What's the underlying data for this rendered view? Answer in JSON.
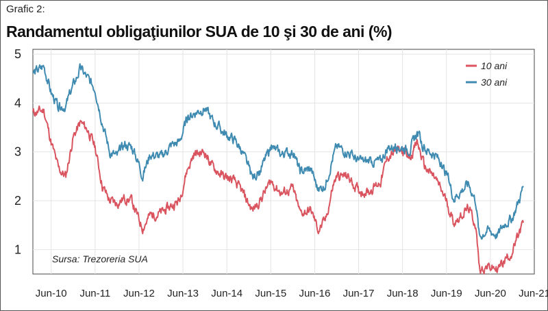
{
  "header": {
    "subtitle": "Grafic 2:",
    "title": "Randamentul obligaţiunilor SUA de 10 şi 30 de ani (%)"
  },
  "chart_data": {
    "type": "line",
    "title": "Randamentul obligaţiunilor SUA de 10 şi 30 de ani (%)",
    "source": "Sursa: Trezoreria SUA",
    "x_ticks": [
      "Jun-10",
      "Jun-11",
      "Jun-12",
      "Jun-13",
      "Jun-14",
      "Jun-15",
      "Jun-16",
      "Jun-17",
      "Jun-18",
      "Jun-19",
      "Jun-20",
      "Jun-21"
    ],
    "y_ticks": [
      1,
      2,
      3,
      4,
      5
    ],
    "ylim": [
      0.5,
      5.1
    ],
    "xlim": [
      "2010-01",
      "2021-06"
    ],
    "grid": true,
    "legend_position": "top-right",
    "series": [
      {
        "name": "10 ani",
        "color": "#d9545f",
        "points": [
          [
            "2010-01",
            3.8
          ],
          [
            "2010-04",
            3.85
          ],
          [
            "2010-06",
            3.2
          ],
          [
            "2010-08",
            2.65
          ],
          [
            "2010-10",
            2.5
          ],
          [
            "2010-12",
            3.3
          ],
          [
            "2011-02",
            3.6
          ],
          [
            "2011-04",
            3.45
          ],
          [
            "2011-06",
            3.1
          ],
          [
            "2011-08",
            2.3
          ],
          [
            "2011-10",
            2.0
          ],
          [
            "2011-12",
            1.95
          ],
          [
            "2012-02",
            2.05
          ],
          [
            "2012-04",
            2.0
          ],
          [
            "2012-06",
            1.6
          ],
          [
            "2012-07",
            1.45
          ],
          [
            "2012-09",
            1.7
          ],
          [
            "2012-12",
            1.75
          ],
          [
            "2013-03",
            1.9
          ],
          [
            "2013-05",
            2.0
          ],
          [
            "2013-07",
            2.6
          ],
          [
            "2013-09",
            2.95
          ],
          [
            "2013-12",
            3.0
          ],
          [
            "2014-02",
            2.7
          ],
          [
            "2014-05",
            2.5
          ],
          [
            "2014-08",
            2.4
          ],
          [
            "2014-10",
            2.2
          ],
          [
            "2015-01",
            1.8
          ],
          [
            "2015-03",
            2.0
          ],
          [
            "2015-06",
            2.4
          ],
          [
            "2015-09",
            2.15
          ],
          [
            "2015-12",
            2.25
          ],
          [
            "2016-02",
            1.75
          ],
          [
            "2016-05",
            1.8
          ],
          [
            "2016-07",
            1.4
          ],
          [
            "2016-09",
            1.6
          ],
          [
            "2016-11",
            2.3
          ],
          [
            "2016-12",
            2.5
          ],
          [
            "2017-03",
            2.5
          ],
          [
            "2017-06",
            2.2
          ],
          [
            "2017-09",
            2.2
          ],
          [
            "2017-12",
            2.4
          ],
          [
            "2018-02",
            2.9
          ],
          [
            "2018-05",
            3.05
          ],
          [
            "2018-08",
            2.9
          ],
          [
            "2018-10",
            3.2
          ],
          [
            "2018-12",
            2.7
          ],
          [
            "2019-03",
            2.45
          ],
          [
            "2019-06",
            2.0
          ],
          [
            "2019-08",
            1.55
          ],
          [
            "2019-10",
            1.7
          ],
          [
            "2019-12",
            1.85
          ],
          [
            "2020-02",
            1.5
          ],
          [
            "2020-03",
            0.6
          ],
          [
            "2020-05",
            0.65
          ],
          [
            "2020-08",
            0.6
          ],
          [
            "2020-10",
            0.8
          ],
          [
            "2020-12",
            0.95
          ],
          [
            "2021-02",
            1.35
          ],
          [
            "2021-03",
            1.55
          ]
        ]
      },
      {
        "name": "30 ani",
        "color": "#3e8ab0",
        "points": [
          [
            "2010-01",
            4.6
          ],
          [
            "2010-04",
            4.75
          ],
          [
            "2010-06",
            4.2
          ],
          [
            "2010-08",
            3.9
          ],
          [
            "2010-10",
            3.95
          ],
          [
            "2010-12",
            4.35
          ],
          [
            "2011-02",
            4.7
          ],
          [
            "2011-04",
            4.5
          ],
          [
            "2011-06",
            4.3
          ],
          [
            "2011-08",
            3.6
          ],
          [
            "2011-10",
            3.0
          ],
          [
            "2011-12",
            2.9
          ],
          [
            "2012-02",
            3.15
          ],
          [
            "2012-04",
            3.1
          ],
          [
            "2012-06",
            2.75
          ],
          [
            "2012-07",
            2.5
          ],
          [
            "2012-09",
            2.95
          ],
          [
            "2012-12",
            2.9
          ],
          [
            "2013-03",
            3.15
          ],
          [
            "2013-05",
            3.2
          ],
          [
            "2013-07",
            3.65
          ],
          [
            "2013-09",
            3.8
          ],
          [
            "2013-12",
            3.9
          ],
          [
            "2014-02",
            3.65
          ],
          [
            "2014-05",
            3.4
          ],
          [
            "2014-08",
            3.25
          ],
          [
            "2014-10",
            3.05
          ],
          [
            "2015-01",
            2.45
          ],
          [
            "2015-03",
            2.6
          ],
          [
            "2015-06",
            3.1
          ],
          [
            "2015-09",
            2.95
          ],
          [
            "2015-12",
            3.0
          ],
          [
            "2016-02",
            2.6
          ],
          [
            "2016-05",
            2.65
          ],
          [
            "2016-07",
            2.2
          ],
          [
            "2016-09",
            2.35
          ],
          [
            "2016-11",
            2.9
          ],
          [
            "2016-12",
            3.1
          ],
          [
            "2017-03",
            3.0
          ],
          [
            "2017-06",
            2.8
          ],
          [
            "2017-09",
            2.8
          ],
          [
            "2017-12",
            2.8
          ],
          [
            "2018-02",
            3.1
          ],
          [
            "2018-05",
            3.1
          ],
          [
            "2018-08",
            3.05
          ],
          [
            "2018-10",
            3.4
          ],
          [
            "2018-12",
            3.05
          ],
          [
            "2019-03",
            2.95
          ],
          [
            "2019-06",
            2.55
          ],
          [
            "2019-08",
            2.05
          ],
          [
            "2019-10",
            2.2
          ],
          [
            "2019-12",
            2.35
          ],
          [
            "2020-02",
            2.0
          ],
          [
            "2020-03",
            1.25
          ],
          [
            "2020-05",
            1.4
          ],
          [
            "2020-08",
            1.3
          ],
          [
            "2020-10",
            1.55
          ],
          [
            "2020-12",
            1.65
          ],
          [
            "2021-02",
            2.05
          ],
          [
            "2021-03",
            2.3
          ]
        ]
      }
    ]
  }
}
